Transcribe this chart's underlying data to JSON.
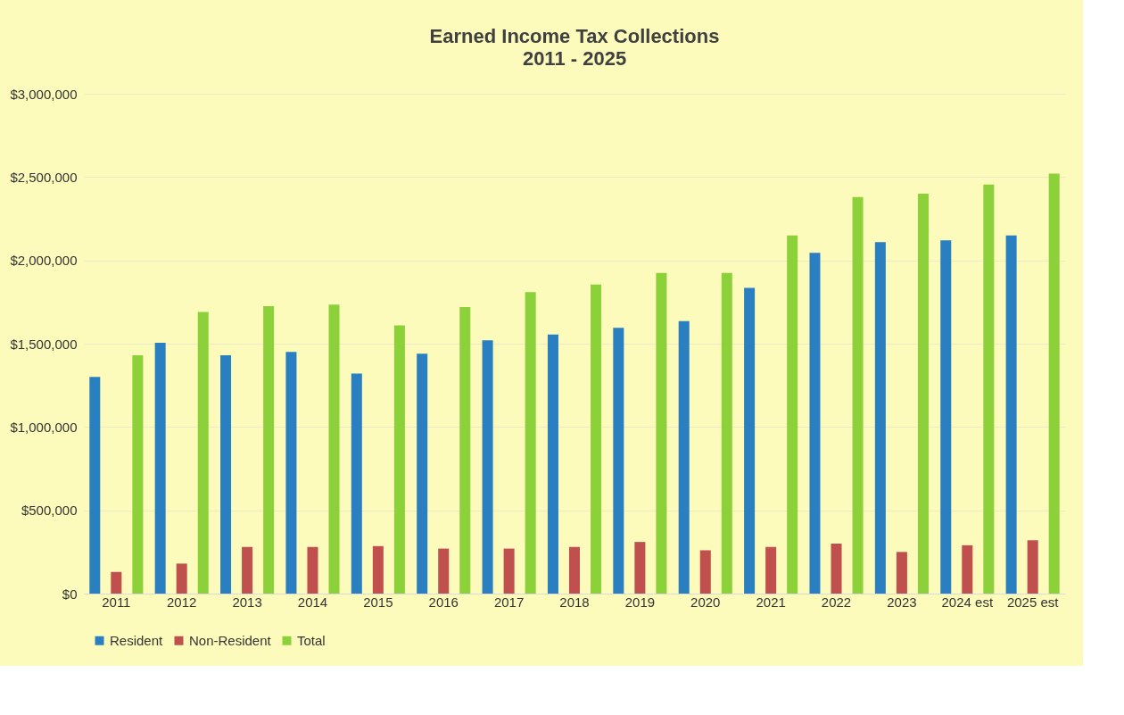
{
  "chart_data": {
    "type": "bar",
    "title": "Earned Income Tax Collections",
    "subtitle": "2011 - 2025",
    "categories": [
      "2011",
      "2012",
      "2013",
      "2014",
      "2015",
      "2016",
      "2017",
      "2018",
      "2019",
      "2020",
      "2021",
      "2022",
      "2023",
      "2024 est",
      "2025 est"
    ],
    "series": [
      {
        "name": "Resident",
        "color": "#2a7fc1",
        "values": [
          1300000,
          1505000,
          1430000,
          1450000,
          1320000,
          1440000,
          1520000,
          1555000,
          1595000,
          1635000,
          1835000,
          2045000,
          2110000,
          2120000,
          2150000
        ]
      },
      {
        "name": "Non-Resident",
        "color": "#c0504d",
        "values": [
          130000,
          180000,
          280000,
          280000,
          285000,
          270000,
          270000,
          280000,
          310000,
          260000,
          280000,
          300000,
          250000,
          290000,
          320000
        ]
      },
      {
        "name": "Total",
        "color": "#8cd13a",
        "values": [
          1430000,
          1690000,
          1725000,
          1735000,
          1610000,
          1720000,
          1810000,
          1855000,
          1925000,
          1925000,
          2150000,
          2380000,
          2400000,
          2455000,
          2520000
        ]
      }
    ],
    "ylim": [
      0,
      3000000
    ],
    "yticks": [
      {
        "value": 0,
        "label": "$0"
      },
      {
        "value": 500000,
        "label": "$500,000"
      },
      {
        "value": 1000000,
        "label": "$1,000,000"
      },
      {
        "value": 1500000,
        "label": "$1,500,000"
      },
      {
        "value": 2000000,
        "label": "$2,000,000"
      },
      {
        "value": 2500000,
        "label": "$2,500,000"
      },
      {
        "value": 3000000,
        "label": "$3,000,000"
      }
    ],
    "grid": "y",
    "legend": "bottom"
  }
}
